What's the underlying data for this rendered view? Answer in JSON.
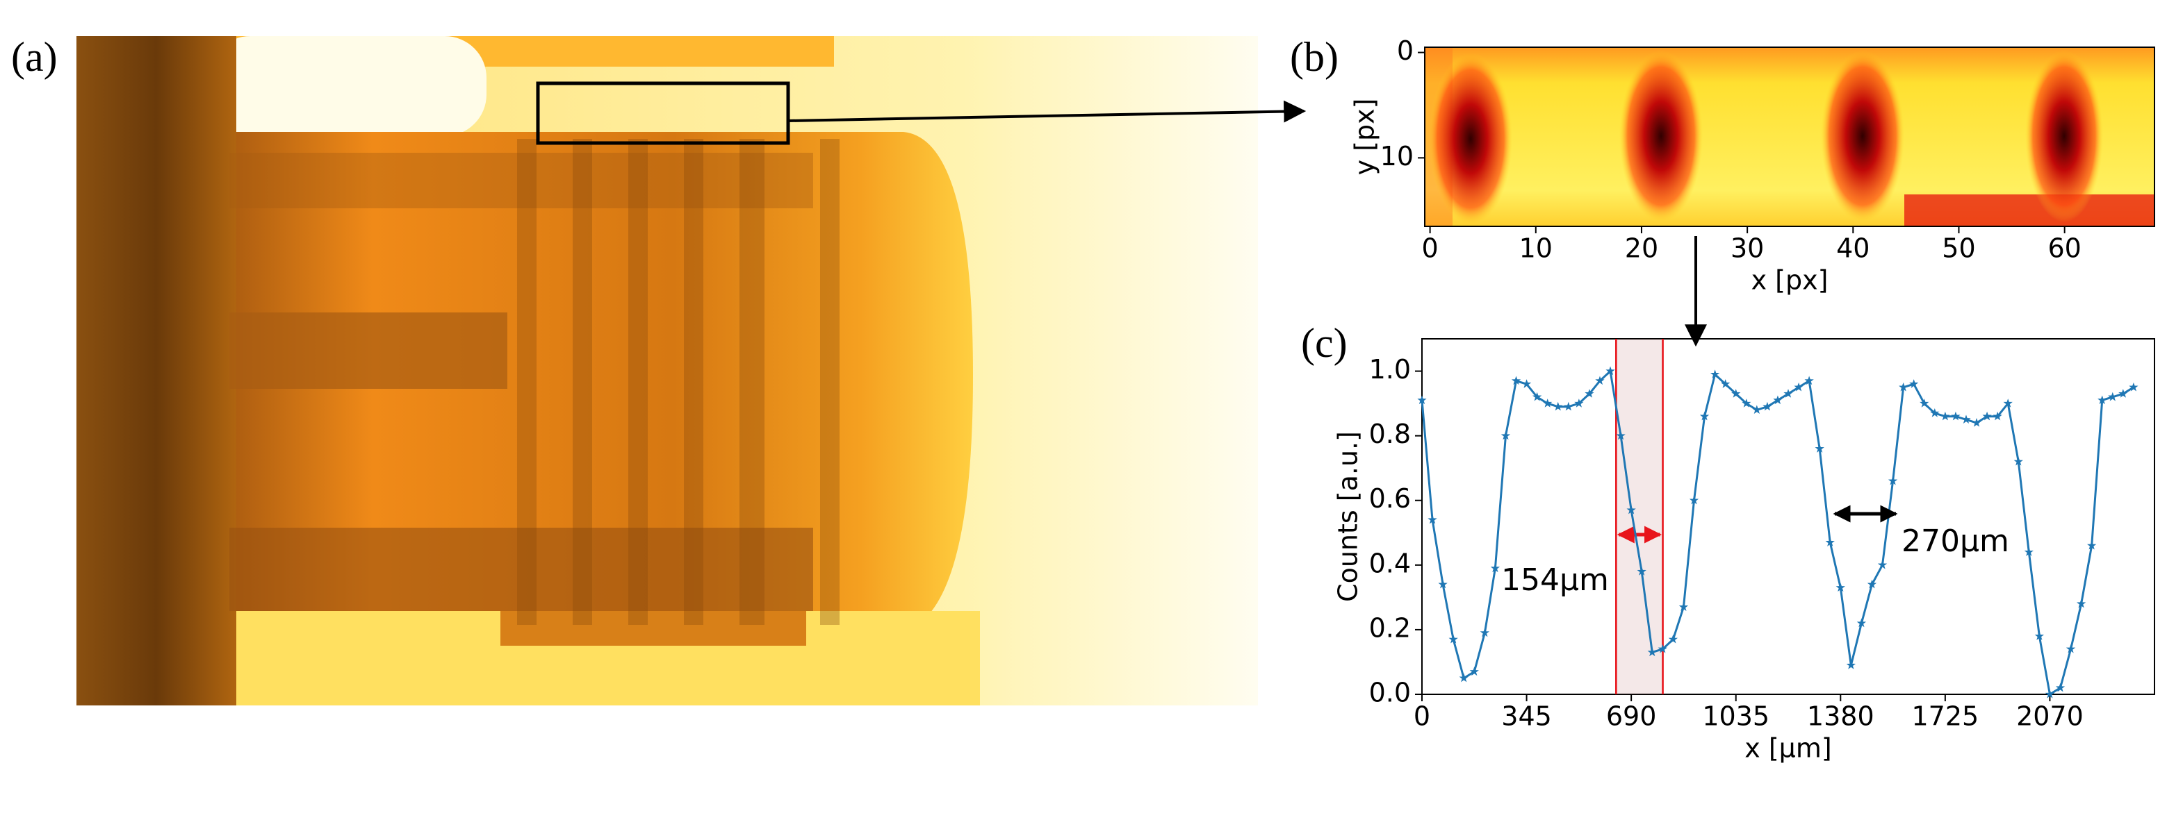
{
  "panels": [
    "(a)",
    "(b)",
    "(c)"
  ],
  "chart_data": [
    {
      "type": "heatmap",
      "xlabel": "x [px]",
      "ylabel": "y [px]",
      "xlim": [
        -0.5,
        68.5
      ],
      "ylim": [
        -0.5,
        16.5
      ],
      "y_inverted": true,
      "xticks": [
        0,
        10,
        20,
        30,
        40,
        50,
        60
      ],
      "yticks": [
        0,
        10
      ]
    },
    {
      "type": "line",
      "xlabel": "x [μm]",
      "ylabel": "Counts [a.u.]",
      "xlim": [
        0,
        2415
      ],
      "ylim": [
        0,
        1.1
      ],
      "xticks": [
        0,
        345,
        690,
        1035,
        1380,
        1725,
        2070
      ],
      "yticks": [
        {
          "value": 0,
          "label": "0.0"
        },
        {
          "value": 0.2,
          "label": "0.2"
        },
        {
          "value": 0.4,
          "label": "0.4"
        },
        {
          "value": 0.6,
          "label": "0.6"
        },
        {
          "value": 0.8,
          "label": "0.8"
        },
        {
          "value": 1.0,
          "label": "1.0"
        }
      ],
      "shaded_span": [
        640,
        794
      ],
      "annotations": [
        {
          "text": "154μm",
          "color": "#e8141b"
        },
        {
          "text": "270μm",
          "color": "#000000"
        }
      ],
      "series": [
        {
          "color": "#1f77b4",
          "x": [
            0,
            34.5,
            69,
            103.5,
            138,
            172.5,
            207,
            241.5,
            276,
            310.5,
            345,
            379.5,
            414,
            448.5,
            483,
            517.5,
            552,
            586.5,
            621,
            655.5,
            690,
            724.5,
            759,
            793.5,
            828,
            862.5,
            897,
            931.5,
            966,
            1000.5,
            1035,
            1069.5,
            1104,
            1138.5,
            1173,
            1207.5,
            1242,
            1276.5,
            1311,
            1345.5,
            1380,
            1414.5,
            1449,
            1483.5,
            1518,
            1552.5,
            1587,
            1621.5,
            1656,
            1690.5,
            1725,
            1759.5,
            1794,
            1828.5,
            1863,
            1897.5,
            1932,
            1966.5,
            2001,
            2035.5,
            2070,
            2104.5,
            2139,
            2173.5,
            2208,
            2242.5,
            2277,
            2311.5,
            2346
          ],
          "values": [
            0.91,
            0.54,
            0.34,
            0.17,
            0.05,
            0.07,
            0.19,
            0.39,
            0.8,
            0.97,
            0.96,
            0.92,
            0.9,
            0.89,
            0.89,
            0.9,
            0.93,
            0.97,
            1.0,
            0.8,
            0.57,
            0.38,
            0.13,
            0.14,
            0.17,
            0.27,
            0.6,
            0.86,
            0.99,
            0.96,
            0.93,
            0.9,
            0.88,
            0.89,
            0.91,
            0.93,
            0.95,
            0.97,
            0.76,
            0.47,
            0.33,
            0.09,
            0.22,
            0.34,
            0.4,
            0.66,
            0.95,
            0.96,
            0.9,
            0.87,
            0.86,
            0.86,
            0.85,
            0.84,
            0.86,
            0.86,
            0.9,
            0.72,
            0.44,
            0.18,
            0.0,
            0.02,
            0.14,
            0.28,
            0.46,
            0.91,
            0.92,
            0.93,
            0.95
          ]
        }
      ]
    }
  ]
}
